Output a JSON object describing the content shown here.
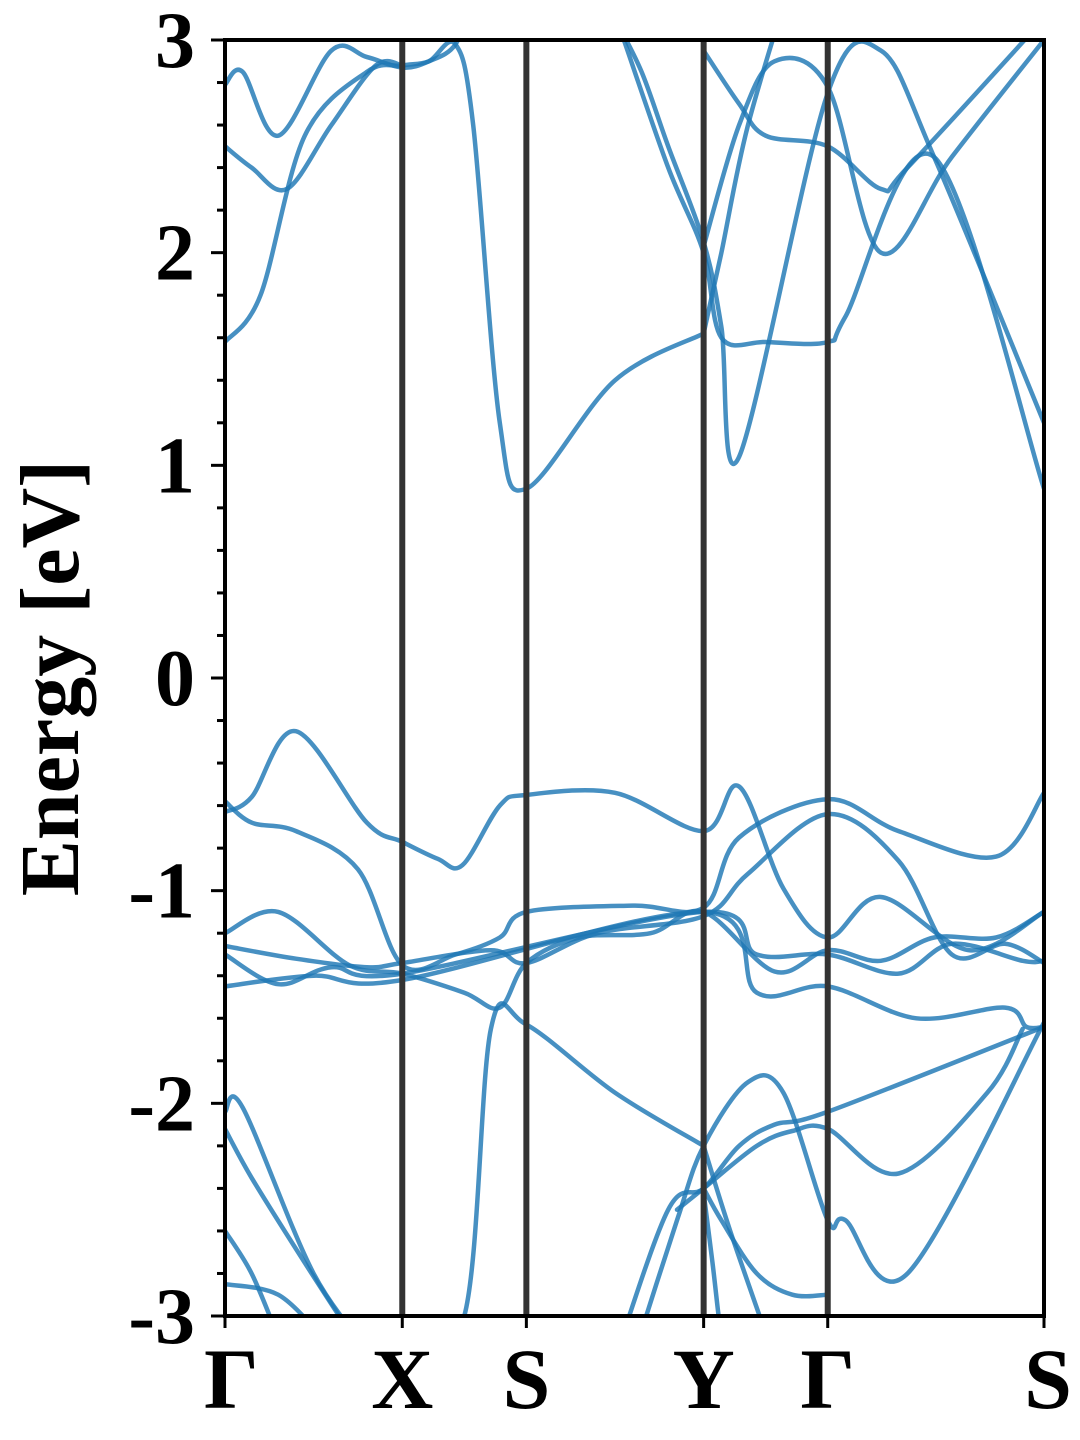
{
  "chart_data": {
    "type": "line",
    "title": "",
    "xlabel": "",
    "ylabel": "Energy [eV]",
    "ylim": [
      -3,
      3
    ],
    "yticks": [
      -3,
      -2,
      -1,
      0,
      1,
      2,
      3
    ],
    "ytick_labels": [
      "-3",
      "-2",
      "-1",
      "0",
      "1",
      "2",
      "3"
    ],
    "minor_ytick_step": 0.2,
    "xlim": [
      0,
      4.62
    ],
    "kpoints": [
      {
        "label": "Γ",
        "x": 0.0
      },
      {
        "label": "X",
        "x": 1.0
      },
      {
        "label": "S",
        "x": 1.7
      },
      {
        "label": "Y",
        "x": 2.7
      },
      {
        "label": "Γ",
        "x": 3.4
      },
      {
        "label": "S",
        "x": 4.62
      }
    ],
    "colors": {
      "bands": "#1f77b4",
      "kpoint_lines": "#333333",
      "frame": "#000000"
    },
    "grid": false,
    "legend": "none",
    "series": [
      {
        "x": [
          0,
          0.15,
          0.4,
          0.8,
          1.0,
          1.2,
          1.34,
          1.55,
          1.7,
          2.2,
          2.7,
          2.9,
          3.15,
          3.4,
          3.7,
          4.2,
          4.62
        ],
        "y": [
          -0.63,
          -0.56,
          -0.25,
          -0.68,
          -0.77,
          -0.85,
          -0.88,
          -0.6,
          -0.55,
          -0.54,
          -0.72,
          -0.51,
          -0.99,
          -1.22,
          -1.03,
          -1.28,
          -1.1
        ]
      },
      {
        "x": [
          0,
          0.15,
          0.4,
          0.75,
          1.0,
          1.3,
          1.55,
          1.7,
          2.3,
          2.7,
          2.9,
          3.4,
          3.8,
          4.35,
          4.62
        ],
        "y": [
          -0.58,
          -0.68,
          -0.72,
          -0.9,
          -1.35,
          -1.3,
          -1.22,
          -1.1,
          -1.07,
          -1.08,
          -0.75,
          -0.57,
          -0.72,
          -0.84,
          -0.54
        ]
      },
      {
        "x": [
          0,
          0.3,
          0.7,
          1.0,
          1.35,
          1.55,
          1.7,
          2.0,
          2.4,
          2.7,
          3.1,
          3.4,
          3.7,
          4.0,
          4.35,
          4.62
        ],
        "y": [
          -1.2,
          -1.1,
          -1.35,
          -1.39,
          -1.48,
          -1.55,
          -1.34,
          -1.22,
          -1.2,
          -1.1,
          -1.38,
          -1.28,
          -1.33,
          -1.22,
          -1.22,
          -1.1
        ]
      },
      {
        "x": [
          0,
          0.4,
          0.8,
          1.0,
          1.5,
          1.7,
          2.1,
          2.7,
          2.95,
          3.4,
          3.8,
          4.1,
          4.4,
          4.62
        ],
        "y": [
          -1.26,
          -1.32,
          -1.36,
          -1.34,
          -1.28,
          -1.34,
          -1.2,
          -1.12,
          -0.92,
          -0.64,
          -0.86,
          -1.3,
          -1.25,
          -1.34
        ]
      },
      {
        "x": [
          0,
          0.3,
          0.6,
          1.0,
          2.7,
          3.0,
          3.4,
          3.8,
          4.1,
          4.5,
          4.62
        ],
        "y": [
          -1.3,
          -1.44,
          -1.36,
          -1.39,
          -1.1,
          -1.3,
          -1.3,
          -1.39,
          -1.25,
          -1.33,
          -1.33
        ]
      },
      {
        "x": [
          0,
          0.5,
          1.0,
          2.7,
          3.0,
          3.4,
          3.9,
          4.4,
          4.52,
          4.62
        ],
        "y": [
          -1.45,
          -1.4,
          -1.42,
          -1.1,
          -1.48,
          -1.45,
          -1.6,
          -1.55,
          -1.64,
          -1.64
        ]
      },
      {
        "x": [
          1.0,
          1.35,
          1.5,
          1.7,
          2.2,
          2.7
        ],
        "y": [
          -3.2,
          -3.0,
          -1.65,
          -1.63,
          -1.95,
          -2.2
        ]
      },
      {
        "x": [
          0,
          0.1,
          0.5,
          0.85
        ],
        "y": [
          -2.04,
          -2.02,
          -2.8,
          -3.2
        ]
      },
      {
        "x": [
          0,
          0.15,
          0.45,
          0.8
        ],
        "y": [
          -2.12,
          -2.35,
          -2.75,
          -3.2
        ]
      },
      {
        "x": [
          0,
          0.15,
          0.3
        ],
        "y": [
          -2.6,
          -2.8,
          -3.1
        ]
      },
      {
        "x": [
          0,
          0.3,
          0.55
        ],
        "y": [
          -2.85,
          -2.9,
          -3.1
        ]
      },
      {
        "x": [
          2.2,
          2.5,
          2.7,
          2.9,
          3.1,
          3.4,
          4.62
        ],
        "y": [
          -3.2,
          -2.5,
          -2.4,
          -2.2,
          -2.1,
          -2.04,
          -1.64
        ]
      },
      {
        "x": [
          2.3,
          2.55,
          2.7,
          2.95,
          3.15,
          3.4,
          3.5,
          3.85,
          4.62
        ],
        "y": [
          -3.2,
          -2.55,
          -2.2,
          -1.9,
          -1.95,
          -2.55,
          -2.55,
          -2.8,
          -1.62
        ]
      },
      {
        "x": [
          2.55,
          2.7,
          3.0,
          3.2,
          3.4,
          3.8,
          4.3,
          4.5
        ],
        "y": [
          -2.5,
          -2.4,
          -2.2,
          -2.13,
          -2.12,
          -2.33,
          -1.95,
          -1.65
        ]
      },
      {
        "x": [
          2.7,
          2.8,
          3.0,
          3.2,
          3.4
        ],
        "y": [
          -2.4,
          -2.55,
          -2.8,
          -2.9,
          -2.9
        ]
      },
      {
        "x": [
          2.7,
          2.85,
          3.1
        ],
        "y": [
          -2.2,
          -2.6,
          -3.2
        ]
      },
      {
        "x": [
          2.7,
          2.75,
          2.8,
          2.85
        ],
        "y": [
          -2.42,
          -2.75,
          -3.1,
          -3.3
        ]
      },
      {
        "x": [
          0,
          0.2,
          0.45,
          0.8,
          1.0,
          1.15,
          1.3,
          1.4,
          1.55,
          1.7,
          2.2,
          2.7
        ],
        "y": [
          1.58,
          1.8,
          2.55,
          2.85,
          2.88,
          2.9,
          2.98,
          2.6,
          1.2,
          0.89,
          1.4,
          1.62
        ]
      },
      {
        "x": [
          0,
          0.1,
          0.3,
          0.6,
          0.8,
          1.0,
          1.15,
          1.3,
          1.4
        ],
        "y": [
          2.79,
          2.85,
          2.55,
          2.95,
          2.92,
          2.87,
          2.9,
          2.98,
          3.2
        ]
      },
      {
        "x": [
          0,
          0.15,
          0.35,
          0.6,
          0.85,
          1.0
        ],
        "y": [
          2.5,
          2.4,
          2.3,
          2.6,
          2.88,
          2.88
        ]
      },
      {
        "x": [
          2.2,
          2.35,
          2.5,
          2.7,
          2.8,
          2.9,
          3.4,
          3.7,
          4.0,
          4.62
        ],
        "y": [
          3.1,
          2.85,
          2.5,
          2.05,
          1.65,
          1.04,
          2.75,
          2.95,
          2.45,
          1.2
        ]
      },
      {
        "x": [
          2.25,
          2.5,
          2.7,
          2.8,
          3.05,
          3.4,
          3.5,
          4.0,
          4.62
        ],
        "y": [
          3.0,
          2.4,
          2.0,
          1.6,
          1.58,
          1.58,
          1.7,
          2.45,
          0.89
        ]
      },
      {
        "x": [
          2.7,
          2.9,
          3.05,
          3.4,
          3.7,
          3.85,
          4.62
        ],
        "y": [
          2.95,
          2.7,
          2.55,
          2.5,
          2.3,
          2.4,
          3.1
        ]
      },
      {
        "x": [
          2.7,
          2.8,
          2.95,
          3.2
        ],
        "y": [
          1.62,
          2.0,
          2.6,
          3.3
        ]
      },
      {
        "x": [
          2.7,
          2.9,
          3.1,
          3.4,
          3.7,
          4.1,
          4.62
        ],
        "y": [
          2.03,
          2.6,
          2.9,
          2.78,
          2.0,
          2.45,
          3.0
        ]
      }
    ]
  }
}
